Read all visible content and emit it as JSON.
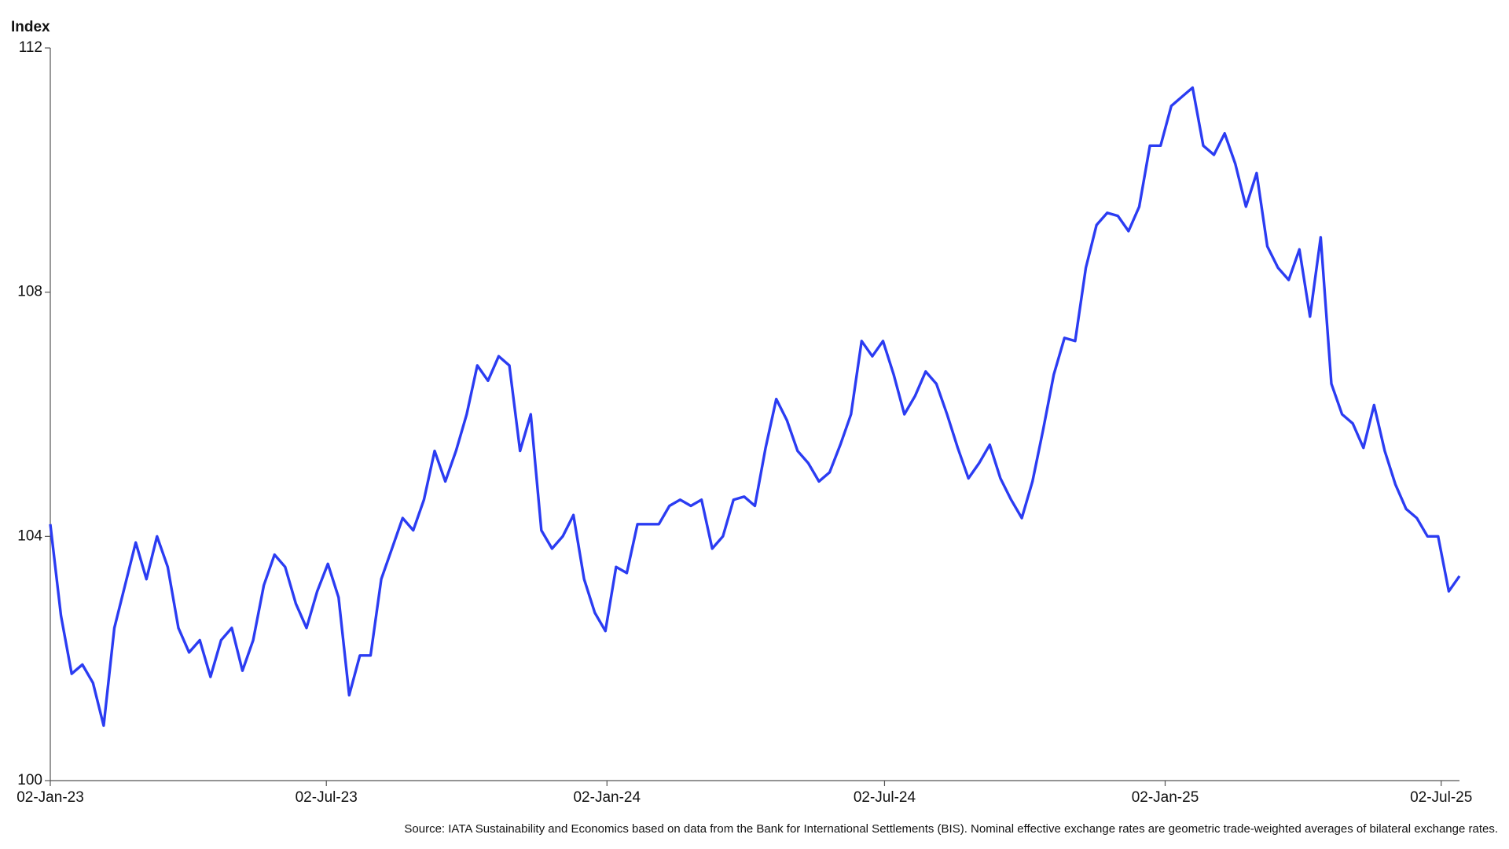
{
  "chart_data": {
    "type": "line",
    "ylabel": "Index",
    "source": "Source: IATA Sustainability and Economics based on data from the Bank for International Settlements (BIS). Nominal effective exchange rates are geometric trade-weighted averages of bilateral exchange rates.",
    "color": "#2b3cf2",
    "x": [
      "2023-01-02",
      "2023-01-09",
      "2023-01-16",
      "2023-01-23",
      "2023-01-30",
      "2023-02-06",
      "2023-02-13",
      "2023-02-20",
      "2023-02-27",
      "2023-03-06",
      "2023-03-13",
      "2023-03-20",
      "2023-03-27",
      "2023-04-03",
      "2023-04-10",
      "2023-04-17",
      "2023-04-24",
      "2023-05-01",
      "2023-05-08",
      "2023-05-15",
      "2023-05-22",
      "2023-05-29",
      "2023-06-05",
      "2023-06-12",
      "2023-06-19",
      "2023-06-26",
      "2023-07-03",
      "2023-07-10",
      "2023-07-17",
      "2023-07-24",
      "2023-07-31",
      "2023-08-07",
      "2023-08-14",
      "2023-08-21",
      "2023-08-28",
      "2023-09-04",
      "2023-09-11",
      "2023-09-18",
      "2023-09-25",
      "2023-10-02",
      "2023-10-09",
      "2023-10-16",
      "2023-10-23",
      "2023-10-30",
      "2023-11-06",
      "2023-11-13",
      "2023-11-20",
      "2023-11-27",
      "2023-12-04",
      "2023-12-11",
      "2023-12-18",
      "2023-12-25",
      "2024-01-01",
      "2024-01-08",
      "2024-01-15",
      "2024-01-22",
      "2024-01-29",
      "2024-02-05",
      "2024-02-12",
      "2024-02-19",
      "2024-02-26",
      "2024-03-04",
      "2024-03-11",
      "2024-03-18",
      "2024-03-25",
      "2024-04-01",
      "2024-04-08",
      "2024-04-15",
      "2024-04-22",
      "2024-04-29",
      "2024-05-06",
      "2024-05-13",
      "2024-05-20",
      "2024-05-27",
      "2024-06-03",
      "2024-06-10",
      "2024-06-17",
      "2024-06-24",
      "2024-07-01",
      "2024-07-08",
      "2024-07-15",
      "2024-07-22",
      "2024-07-29",
      "2024-08-05",
      "2024-08-12",
      "2024-08-19",
      "2024-08-26",
      "2024-09-02",
      "2024-09-09",
      "2024-09-16",
      "2024-09-23",
      "2024-09-30",
      "2024-10-07",
      "2024-10-14",
      "2024-10-21",
      "2024-10-28",
      "2024-11-04",
      "2024-11-11",
      "2024-11-18",
      "2024-11-25",
      "2024-12-02",
      "2024-12-09",
      "2024-12-16",
      "2024-12-23",
      "2024-12-30",
      "2025-01-06",
      "2025-01-13",
      "2025-01-20",
      "2025-01-27",
      "2025-02-03",
      "2025-02-10",
      "2025-02-17",
      "2025-02-24",
      "2025-03-03",
      "2025-03-10",
      "2025-03-17",
      "2025-03-24",
      "2025-03-31",
      "2025-04-07",
      "2025-04-14",
      "2025-04-21",
      "2025-04-28",
      "2025-05-05",
      "2025-05-12",
      "2025-05-19",
      "2025-05-26",
      "2025-06-02",
      "2025-06-09",
      "2025-06-16",
      "2025-06-23",
      "2025-06-30",
      "2025-07-07",
      "2025-07-14"
    ],
    "values": [
      104.2,
      102.7,
      101.75,
      101.9,
      101.6,
      100.9,
      102.5,
      103.2,
      103.9,
      103.3,
      104.0,
      103.5,
      102.5,
      102.1,
      102.3,
      101.7,
      102.3,
      102.5,
      101.8,
      102.3,
      103.2,
      103.7,
      103.5,
      102.9,
      102.5,
      103.1,
      103.55,
      103.0,
      101.4,
      102.05,
      102.05,
      103.3,
      103.8,
      104.3,
      104.1,
      104.6,
      105.4,
      104.9,
      105.4,
      106.0,
      106.8,
      106.55,
      106.95,
      106.8,
      105.4,
      106.0,
      104.1,
      103.8,
      104.0,
      104.35,
      103.3,
      102.75,
      102.45,
      103.5,
      103.4,
      104.2,
      104.2,
      104.2,
      104.5,
      104.6,
      104.5,
      104.6,
      103.8,
      104.0,
      104.6,
      104.65,
      104.5,
      105.45,
      106.25,
      105.9,
      105.4,
      105.2,
      104.9,
      105.05,
      105.5,
      106.0,
      107.2,
      106.95,
      107.2,
      106.65,
      106.0,
      106.3,
      106.7,
      106.5,
      106.0,
      105.45,
      104.95,
      105.2,
      105.5,
      104.95,
      104.6,
      104.3,
      104.9,
      105.75,
      106.65,
      107.25,
      107.2,
      108.4,
      109.1,
      109.3,
      109.25,
      109.0,
      109.4,
      110.4,
      110.4,
      111.05,
      111.2,
      111.35,
      110.4,
      110.25,
      110.6,
      110.1,
      109.4,
      109.95,
      108.75,
      108.4,
      108.2,
      108.7,
      107.6,
      108.9,
      106.5,
      106.0,
      105.85,
      105.45,
      106.15,
      105.4,
      104.85,
      104.45,
      104.3,
      104.0,
      104.0,
      103.1,
      103.35
    ],
    "xlim": [
      "2023-01-02",
      "2025-07-14"
    ],
    "xticks": [
      {
        "value": "2023-01-02",
        "label": "02-Jan-23"
      },
      {
        "value": "2023-07-02",
        "label": "02-Jul-23"
      },
      {
        "value": "2024-01-02",
        "label": "02-Jan-24"
      },
      {
        "value": "2024-07-02",
        "label": "02-Jul-24"
      },
      {
        "value": "2025-01-02",
        "label": "02-Jan-25"
      },
      {
        "value": "2025-07-02",
        "label": "02-Jul-25"
      }
    ],
    "ylim": [
      100,
      112
    ],
    "yticks": [
      100,
      104,
      108,
      112
    ],
    "grid": false
  }
}
